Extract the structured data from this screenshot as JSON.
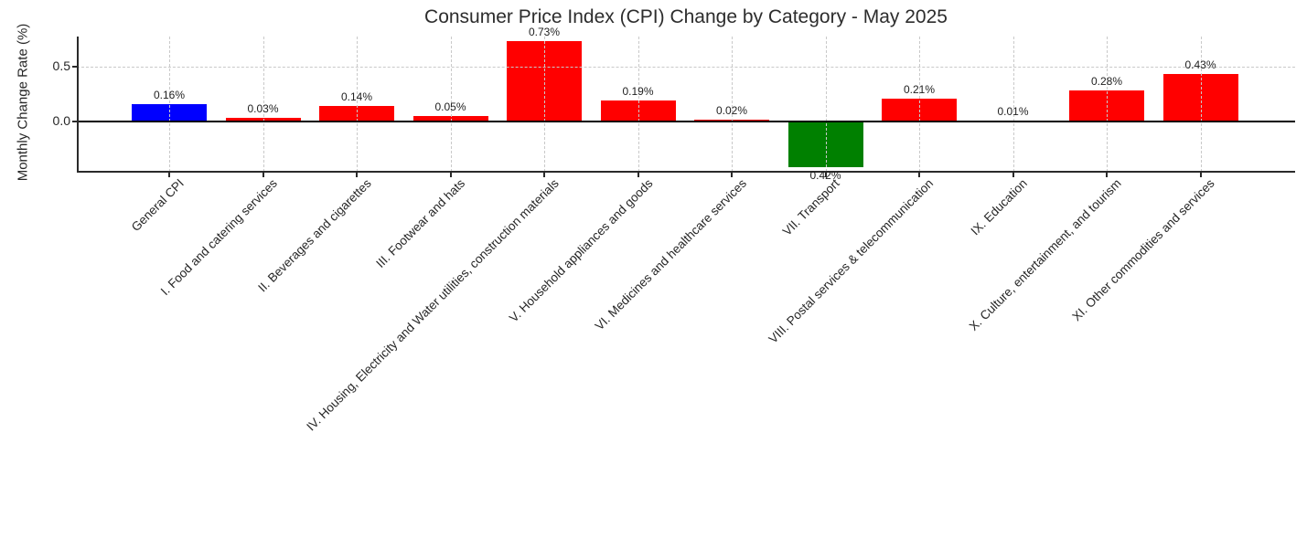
{
  "chart_data": {
    "type": "bar",
    "title": "Consumer Price Index (CPI) Change by Category - May 2025",
    "ylabel": "Monthly Change Rate (%)",
    "xlabel": "",
    "categories": [
      "General CPI",
      "I. Food and catering services",
      "II. Beverages and cigarettes",
      "III. Footwear and hats",
      "IV. Housing, Electricity and Water utilities, construction materials",
      "V. Household appliances and goods",
      "VI. Medicines and healthcare services",
      "VII. Transport",
      "VIII. Postal services & telecommunication",
      "IX. Education",
      "X. Culture, entertainment, and tourism",
      "XI. Other commodities and services"
    ],
    "values": [
      0.16,
      0.03,
      0.14,
      0.05,
      0.73,
      0.19,
      0.02,
      -0.42,
      0.21,
      0.01,
      0.28,
      0.43
    ],
    "bar_labels": [
      "0.16%",
      "0.03%",
      "0.14%",
      "0.05%",
      "0.73%",
      "0.19%",
      "0.02%",
      "0.42%",
      "0.21%",
      "0.01%",
      "0.28%",
      "0.43%"
    ],
    "bar_colors": [
      "#0000ff",
      "#ff0000",
      "#ff0000",
      "#ff0000",
      "#ff0000",
      "#ff0000",
      "#ff0000",
      "#008000",
      "#ff0000",
      "#ff0000",
      "#ff0000",
      "#ff0000"
    ],
    "palette": {
      "general_cpi": "#0000ff",
      "increase": "#ff0000",
      "decrease": "#008000",
      "grid": "#c9c9c9",
      "axis": "#2a2a2a",
      "zero_line": "#000000",
      "text": "#262626"
    },
    "yticks": [
      "0.0",
      "0.5"
    ],
    "ytick_values": [
      0.0,
      0.5
    ],
    "ylim": [
      -0.46,
      0.78
    ],
    "grid": "dashed, drawn over bars",
    "legend": "none",
    "x_tick_label_rotation_deg": 45
  }
}
